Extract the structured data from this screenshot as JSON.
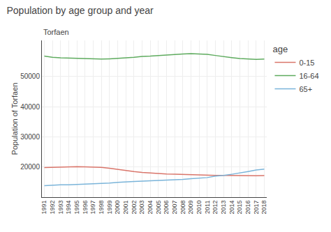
{
  "chart_data": {
    "type": "line",
    "title": "Population by age group and year",
    "subtitle": "Torfaen",
    "ylabel": "Population of Torfaen",
    "legend_title": "age",
    "x": [
      1991,
      1992,
      1993,
      1994,
      1995,
      1996,
      1997,
      1998,
      1999,
      2000,
      2001,
      2002,
      2003,
      2004,
      2005,
      2006,
      2007,
      2008,
      2009,
      2010,
      2011,
      2012,
      2013,
      2014,
      2015,
      2016,
      2017,
      2018
    ],
    "series": [
      {
        "name": "0-15",
        "color": "#d9756a",
        "values": [
          19800,
          19900,
          19950,
          20000,
          20100,
          20050,
          20000,
          19900,
          19600,
          19200,
          18800,
          18500,
          18200,
          18000,
          17800,
          17700,
          17600,
          17500,
          17400,
          17350,
          17300,
          17250,
          17200,
          17150,
          17100,
          17100,
          17100,
          17150
        ]
      },
      {
        "name": "16-64",
        "color": "#5eab5e",
        "values": [
          56800,
          56400,
          56200,
          56100,
          56000,
          55900,
          55800,
          55800,
          55900,
          56000,
          56200,
          56400,
          56700,
          56800,
          57000,
          57200,
          57400,
          57500,
          57600,
          57500,
          57400,
          57000,
          56600,
          56300,
          56000,
          55800,
          55700,
          55800
        ]
      },
      {
        "name": "65+",
        "color": "#7ab4d9",
        "values": [
          13800,
          14000,
          14100,
          14100,
          14200,
          14300,
          14400,
          14500,
          14700,
          14900,
          15100,
          15200,
          15300,
          15400,
          15500,
          15600,
          15700,
          15900,
          16100,
          16300,
          16500,
          17000,
          17200,
          17600,
          18000,
          18500,
          19000,
          19300
        ]
      }
    ],
    "xlim": [
      1990.7,
      2018.3
    ],
    "xticks": [
      1991,
      1992,
      1993,
      1994,
      1995,
      1996,
      1997,
      1998,
      1999,
      2000,
      2001,
      2002,
      2003,
      2004,
      2005,
      2006,
      2007,
      2008,
      2009,
      2010,
      2011,
      2012,
      2013,
      2014,
      2015,
      2016,
      2017,
      2018
    ],
    "ylim": [
      10000,
      62000
    ],
    "yticks": [
      20000,
      30000,
      40000,
      50000
    ],
    "grid": true,
    "legend": "right"
  }
}
